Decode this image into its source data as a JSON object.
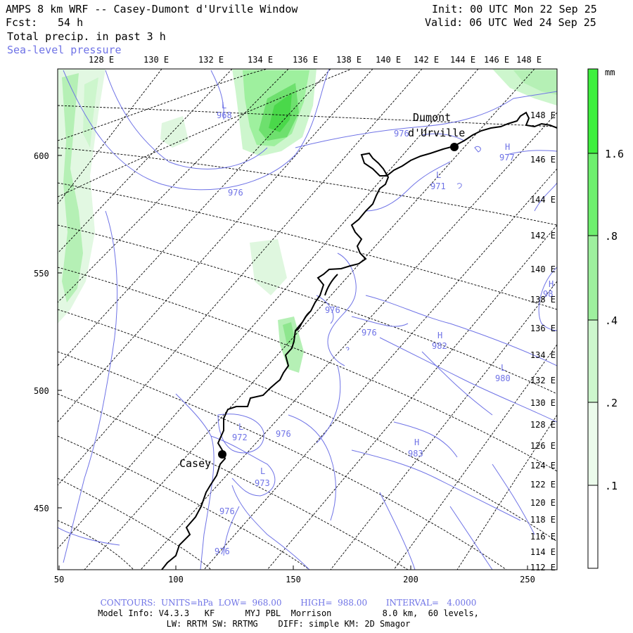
{
  "header": {
    "title": "AMPS 8 km WRF -- Casey-Dumont d'Urville Window",
    "fcst_label": "Fcst:",
    "fcst_value": "54 h",
    "field_1": "Total precip. in past 3 h",
    "field_2": "Sea-level pressure",
    "init": "Init: 00 UTC Mon 22 Sep 25",
    "valid": "Valid: 06 UTC Wed 24 Sep 25"
  },
  "map": {
    "top_longitudes": [
      "128 E",
      "130 E",
      "132 E",
      "134 E",
      "136 E",
      "138 E",
      "140 E",
      "142 E",
      "144 E",
      "146 E",
      "148 E"
    ],
    "right_longitudes": [
      "148 E",
      "146 E",
      "144 E",
      "142 E",
      "140 E",
      "138 E",
      "136 E",
      "134 E",
      "132 E",
      "130 E",
      "128 E",
      "126 E",
      "124 E",
      "122 E",
      "120 E",
      "118 E",
      "116 E",
      "114 E",
      "112 E"
    ],
    "x_ticks": [
      "50",
      "100",
      "150",
      "200",
      "250"
    ],
    "y_ticks": [
      "600",
      "550",
      "500",
      "450"
    ],
    "places": [
      {
        "name": "Dumont",
        "name2": "d'Urville"
      },
      {
        "name": "Casey"
      }
    ],
    "pressure_labels": [
      {
        "kind": "L",
        "value": "968"
      },
      {
        "kind": "",
        "value": "976"
      },
      {
        "kind": "",
        "value": "976"
      },
      {
        "kind": "L",
        "value": "971"
      },
      {
        "kind": "H",
        "value": "977"
      },
      {
        "kind": "",
        "value": "976"
      },
      {
        "kind": "",
        "value": "976"
      },
      {
        "kind": "H",
        "value": "982"
      },
      {
        "kind": "L",
        "value": "980"
      },
      {
        "kind": "H",
        "value": "98"
      },
      {
        "kind": "L",
        "value": "972"
      },
      {
        "kind": "",
        "value": "976"
      },
      {
        "kind": "L",
        "value": "973"
      },
      {
        "kind": "H",
        "value": "983"
      },
      {
        "kind": "",
        "value": "976"
      },
      {
        "kind": "",
        "value": "976"
      }
    ]
  },
  "colorbar": {
    "unit": "mm",
    "labels": [
      "1.6",
      ".8",
      ".4",
      ".2",
      ".1"
    ],
    "colors": [
      "#3ef03e",
      "#6ef06e",
      "#9ef09e",
      "#cdf6cd",
      "#ebfbeb",
      "#ffffff"
    ]
  },
  "footer": {
    "contours": "CONTOURS:  UNITS=hPa  LOW=  968.00       HIGH=  988.00       INTERVAL=   4.0000",
    "model_info": "Model Info: V4.3.3   KF      MYJ PBL  Morrison          8.0 km,  60 levels,",
    "physics": "LW: RRTM SW: RRTMG    DIFF: simple KM: 2D Smagor"
  },
  "colors": {
    "contour": "#6f73e6",
    "precip": "#3ef03e"
  }
}
